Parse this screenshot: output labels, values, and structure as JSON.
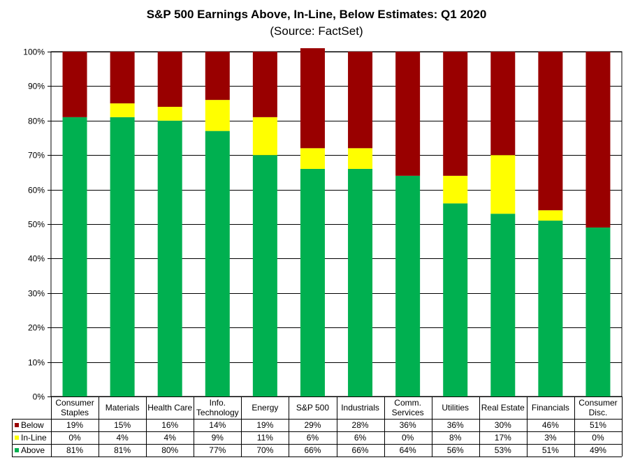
{
  "chart_data": {
    "type": "bar",
    "stacked": true,
    "title": "S&P 500 Earnings Above, In-Line, Below Estimates: Q1 2020",
    "subtitle": "(Source: FactSet)",
    "ylim": [
      0,
      100
    ],
    "y_ticks": [
      "0%",
      "10%",
      "20%",
      "30%",
      "40%",
      "50%",
      "60%",
      "70%",
      "80%",
      "90%",
      "100%"
    ],
    "categories": [
      [
        "Consumer",
        "Staples"
      ],
      [
        "Materials"
      ],
      [
        "Health Care"
      ],
      [
        "Info.",
        "Technology"
      ],
      [
        "Energy"
      ],
      [
        "S&P 500"
      ],
      [
        "Industrials"
      ],
      [
        "Comm.",
        "Services"
      ],
      [
        "Utilities"
      ],
      [
        "Real Estate"
      ],
      [
        "Financials"
      ],
      [
        "Consumer",
        "Disc."
      ]
    ],
    "series": [
      {
        "name": "Above",
        "color": "#00b050",
        "values": [
          81,
          81,
          80,
          77,
          70,
          66,
          66,
          64,
          56,
          53,
          51,
          49
        ]
      },
      {
        "name": "In-Line",
        "color": "#ffff00",
        "values": [
          0,
          4,
          4,
          9,
          11,
          6,
          6,
          0,
          8,
          17,
          3,
          0
        ]
      },
      {
        "name": "Below",
        "color": "#990000",
        "values": [
          19,
          15,
          16,
          14,
          19,
          29,
          28,
          36,
          36,
          30,
          46,
          51
        ]
      }
    ],
    "table_rows": [
      {
        "name": "Below",
        "color": "#990000",
        "labels": [
          "19%",
          "15%",
          "16%",
          "14%",
          "19%",
          "29%",
          "28%",
          "36%",
          "36%",
          "30%",
          "46%",
          "51%"
        ]
      },
      {
        "name": "In-Line",
        "color": "#ffff00",
        "labels": [
          "0%",
          "4%",
          "4%",
          "9%",
          "11%",
          "6%",
          "6%",
          "0%",
          "8%",
          "17%",
          "3%",
          "0%"
        ]
      },
      {
        "name": "Above",
        "color": "#00b050",
        "labels": [
          "81%",
          "81%",
          "80%",
          "77%",
          "70%",
          "66%",
          "66%",
          "64%",
          "56%",
          "53%",
          "51%",
          "49%"
        ]
      }
    ]
  }
}
